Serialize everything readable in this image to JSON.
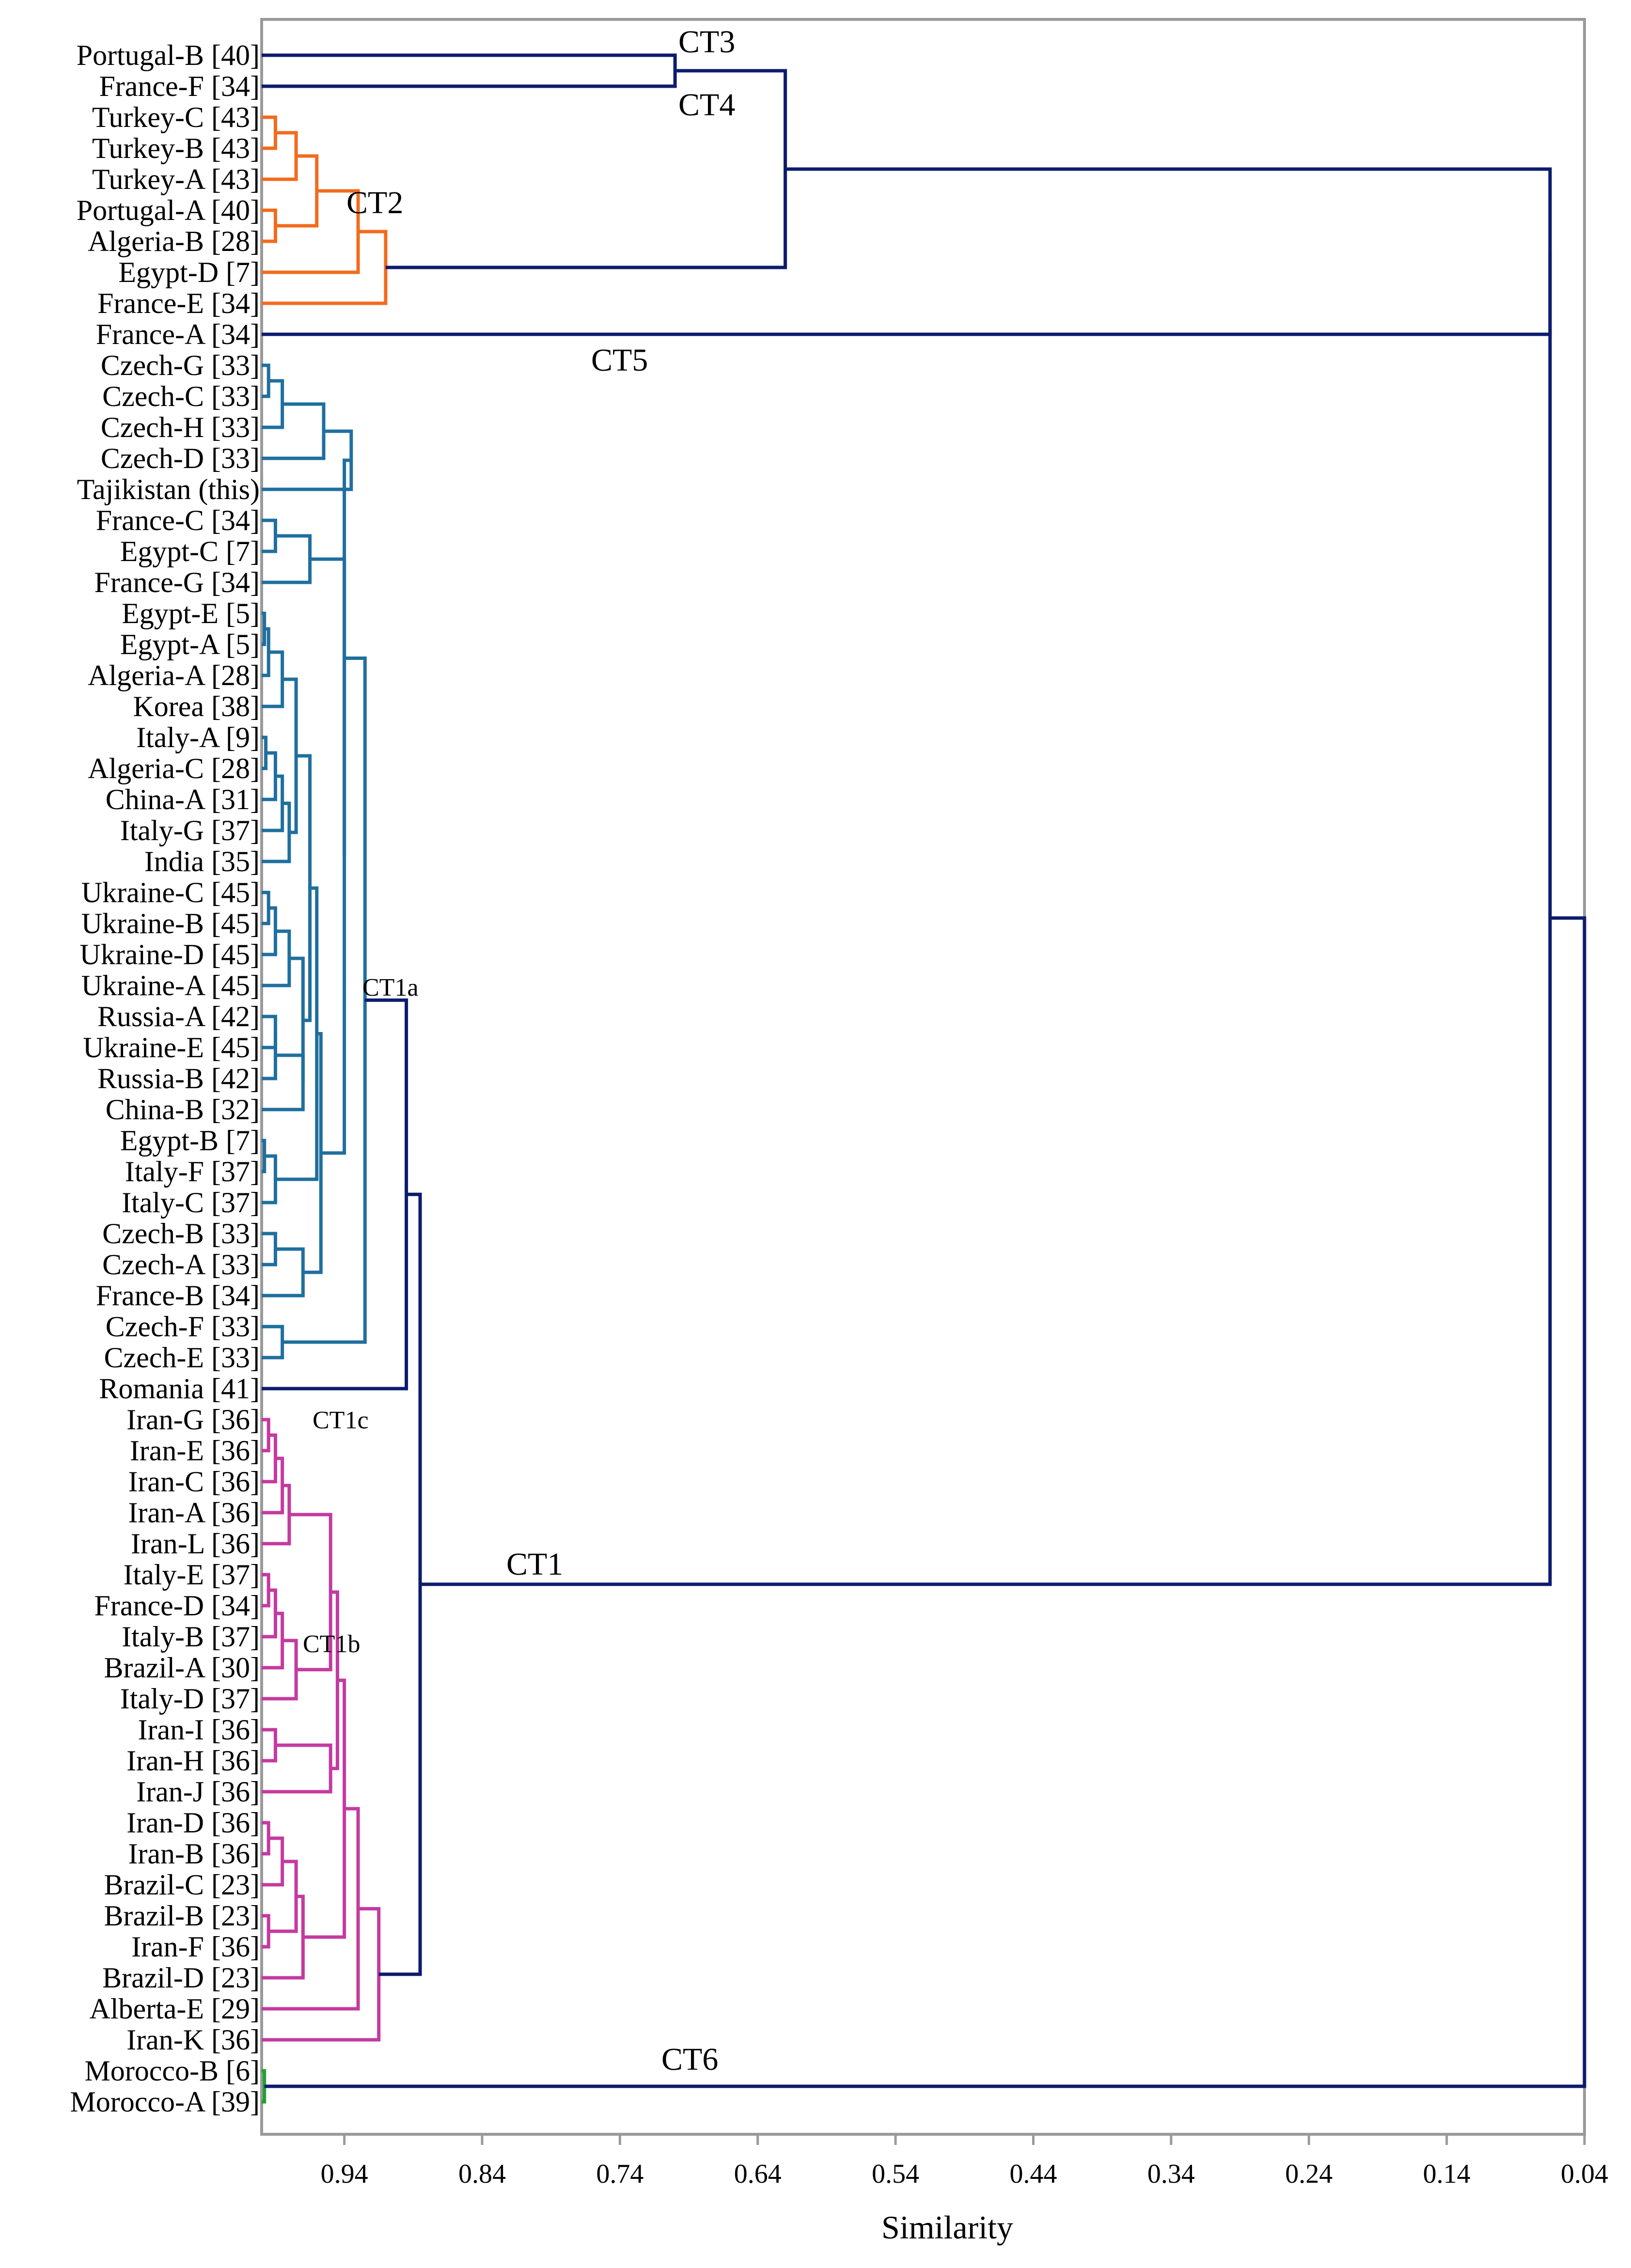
{
  "chart_data": {
    "type": "dendrogram",
    "xlabel": "Similarity",
    "xlim": [
      1.0,
      0.04
    ],
    "ticks": [
      0.94,
      0.84,
      0.74,
      0.64,
      0.54,
      0.44,
      0.34,
      0.24,
      0.14,
      0.04
    ],
    "tick_labels": [
      "0.94",
      "0.84",
      "0.74",
      "0.64",
      "0.54",
      "0.44",
      "0.34",
      "0.24",
      "0.14",
      "0.04"
    ],
    "colors": {
      "navy": "#0d1b6e",
      "orange": "#f26b1d",
      "teal": "#1f6f9e",
      "magenta": "#c43aa0",
      "green": "#22a030",
      "axis": "#9a9a9a"
    },
    "leaves": [
      "Portugal-B [40]",
      "France-F [34]",
      "Turkey-C [43]",
      "Turkey-B [43]",
      "Turkey-A [43]",
      "Portugal-A [40]",
      "Algeria-B [28]",
      "Egypt-D [7]",
      "France-E [34]",
      "France-A [34]",
      "Czech-G [33]",
      "Czech-C [33]",
      "Czech-H [33]",
      "Czech-D [33]",
      "Tajikistan (this)",
      "France-C [34]",
      "Egypt-C [7]",
      "France-G [34]",
      "Egypt-E [5]",
      "Egypt-A [5]",
      "Algeria-A [28]",
      "Korea [38]",
      "Italy-A [9]",
      "Algeria-C [28]",
      "China-A [31]",
      "Italy-G [37]",
      "India [35]",
      "Ukraine-C [45]",
      "Ukraine-B [45]",
      "Ukraine-D [45]",
      "Ukraine-A [45]",
      "Russia-A [42]",
      "Ukraine-E [45]",
      "Russia-B [42]",
      "China-B [32]",
      "Egypt-B [7]",
      "Italy-F [37]",
      "Italy-C [37]",
      "Czech-B [33]",
      "Czech-A [33]",
      "France-B [34]",
      "Czech-F [33]",
      "Czech-E [33]",
      "Romania [41]",
      "Iran-G [36]",
      "Iran-E [36]",
      "Iran-C [36]",
      "Iran-A [36]",
      "Iran-L [36]",
      "Italy-E [37]",
      "France-D [34]",
      "Italy-B [37]",
      "Brazil-A [30]",
      "Italy-D [37]",
      "Iran-I [36]",
      "Iran-H [36]",
      "Iran-J [36]",
      "Iran-D [36]",
      "Iran-B [36]",
      "Brazil-C [23]",
      "Brazil-B [23]",
      "Iran-F [36]",
      "Brazil-D [23]",
      "Alberta-E [29]",
      "Iran-K [36]",
      "Morocco-B [6]",
      "Morocco-A [39]"
    ],
    "annotations": [
      "CT3",
      "CT4",
      "CT2",
      "CT5",
      "CT1a",
      "CT1c",
      "CT1",
      "CT1b",
      "CT6"
    ]
  }
}
